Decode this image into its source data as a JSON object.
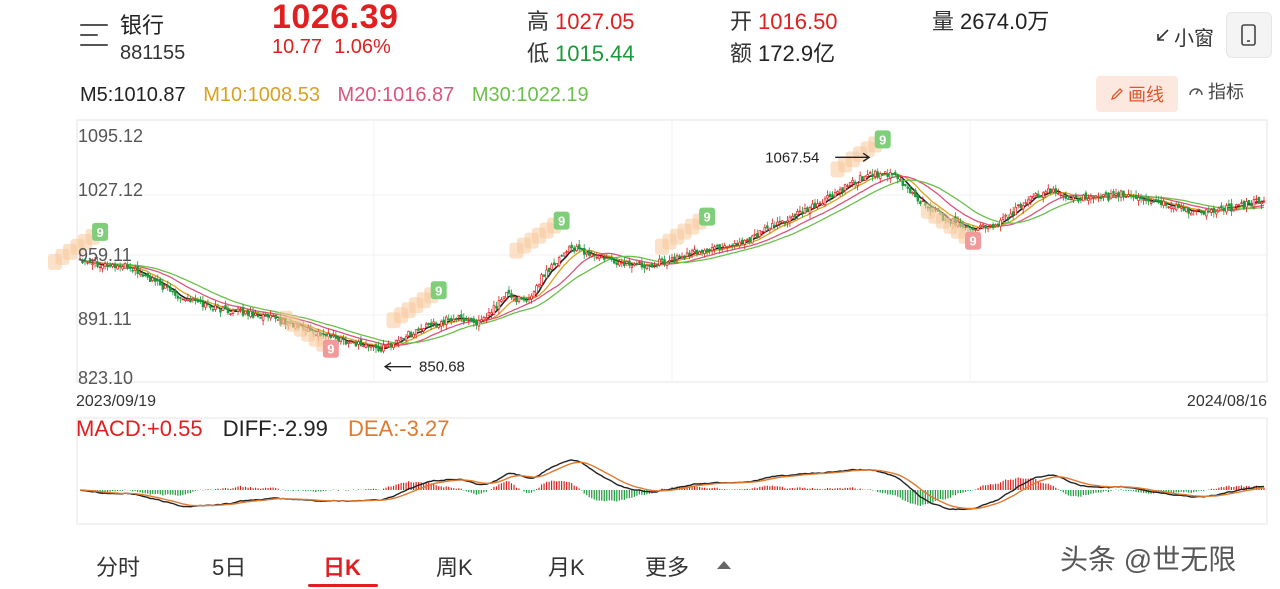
{
  "header": {
    "name": "银行",
    "code": "881155",
    "price": "1026.39",
    "change": "10.77",
    "change_pct": "1.06%",
    "high_label": "高",
    "high": "1027.05",
    "low_label": "低",
    "low": "1015.44",
    "open_label": "开",
    "open": "1016.50",
    "amount_label": "额",
    "amount": "172.9亿",
    "volume_label": "量",
    "volume": "2674.0万",
    "mini_window": "小窗",
    "menu_icon": "menu-icon",
    "phone_icon": "phone-icon"
  },
  "ma_legend": {
    "m5": "M5:1010.87",
    "m10": "M10:1008.53",
    "m20": "M20:1016.87",
    "m30": "M30:1022.19",
    "colors": {
      "m5": "#222222",
      "m10": "#d9a21e",
      "m20": "#d9567a",
      "m30": "#6cbf4a"
    }
  },
  "toolbar": {
    "draw_label": "画线",
    "indicator_label": "指标"
  },
  "chart_data": [
    {
      "type": "candlestick",
      "y_ticks": [
        "1095.12",
        "1027.12",
        "959.11",
        "891.11",
        "823.10"
      ],
      "ylim": [
        823.1,
        1095.12
      ],
      "x_start_label": "2023/09/19",
      "x_end_label": "2024/08/16",
      "annotations": [
        {
          "text": "1067.54",
          "value": 1067.54,
          "type": "high"
        },
        {
          "text": "850.68",
          "value": 850.68,
          "type": "low"
        }
      ],
      "close_keypoints": [
        [
          0,
          955
        ],
        [
          10,
          948
        ],
        [
          20,
          945
        ],
        [
          30,
          928
        ],
        [
          40,
          912
        ],
        [
          55,
          898
        ],
        [
          70,
          892
        ],
        [
          85,
          880
        ],
        [
          100,
          866
        ],
        [
          115,
          856
        ],
        [
          120,
          852
        ],
        [
          130,
          868
        ],
        [
          140,
          880
        ],
        [
          150,
          888
        ],
        [
          160,
          882
        ],
        [
          170,
          915
        ],
        [
          178,
          905
        ],
        [
          185,
          938
        ],
        [
          195,
          968
        ],
        [
          205,
          958
        ],
        [
          215,
          950
        ],
        [
          225,
          948
        ],
        [
          235,
          953
        ],
        [
          245,
          962
        ],
        [
          255,
          968
        ],
        [
          265,
          975
        ],
        [
          275,
          990
        ],
        [
          290,
          1010
        ],
        [
          305,
          1035
        ],
        [
          315,
          1052
        ],
        [
          325,
          1048
        ],
        [
          335,
          1020
        ],
        [
          345,
          1000
        ],
        [
          355,
          990
        ],
        [
          365,
          992
        ],
        [
          375,
          1015
        ],
        [
          385,
          1032
        ],
        [
          395,
          1025
        ],
        [
          405,
          1022
        ],
        [
          415,
          1028
        ],
        [
          425,
          1022
        ],
        [
          435,
          1015
        ],
        [
          445,
          1008
        ],
        [
          455,
          1010
        ],
        [
          462,
          1014
        ],
        [
          472,
          1022
        ]
      ],
      "td_markers": [
        {
          "index": 8,
          "digit": "9",
          "kind": "top"
        },
        {
          "index": 100,
          "digit": "9",
          "kind": "bottom"
        },
        {
          "index": 143,
          "digit": "9",
          "kind": "top"
        },
        {
          "index": 192,
          "digit": "9",
          "kind": "top"
        },
        {
          "index": 250,
          "digit": "9",
          "kind": "top"
        },
        {
          "index": 320,
          "digit": "9",
          "kind": "top"
        },
        {
          "index": 356,
          "digit": "9",
          "kind": "bottom"
        }
      ],
      "ma_series": [
        "M5",
        "M10",
        "M20",
        "M30"
      ]
    },
    {
      "type": "macd",
      "macd": "MACD:+0.55",
      "diff": "DIFF:-2.99",
      "dea": "DEA:-3.27",
      "colors": {
        "macd": "#e02020",
        "diff": "#222222",
        "dea": "#e07a30"
      }
    }
  ],
  "tabs": [
    {
      "label": "分时"
    },
    {
      "label": "5日"
    },
    {
      "label": "日K",
      "active": true
    },
    {
      "label": "周K"
    },
    {
      "label": "月K"
    },
    {
      "label": "更多"
    }
  ],
  "watermark": "头条 @世无限"
}
